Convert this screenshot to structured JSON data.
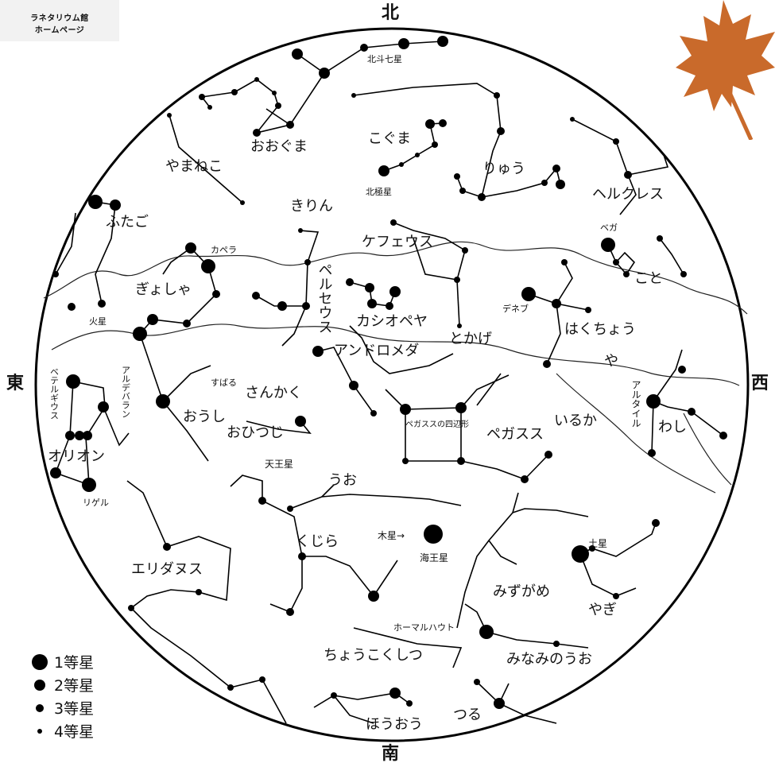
{
  "header": {
    "line1": "ラネタリウム館",
    "line2": "ホームページ"
  },
  "directions": {
    "north": "北",
    "south": "南",
    "east": "東",
    "west": "西"
  },
  "legend": [
    {
      "label": "1等星"
    },
    {
      "label": "2等星"
    },
    {
      "label": "3等星"
    },
    {
      "label": "4等星"
    }
  ],
  "colors": {
    "leaf": "#c96a2b",
    "ink": "#000000",
    "background": "#ffffff"
  },
  "decoration": {
    "icon": "maple-leaf-icon"
  },
  "labels": {
    "hokuto": "北斗七星",
    "ooguma": "おおぐま",
    "koguma": "こぐま",
    "ryuu": "りゅう",
    "hokkyokusei": "北極星",
    "yamaneko": "やまねこ",
    "kirin": "きりん",
    "herukuresu": "ヘルクレス",
    "futago": "ふたご",
    "kapera": "カペラ",
    "perseus": "ペルセウス",
    "kefeusu": "ケフェウス",
    "vega": "ベガ",
    "koto": "こと",
    "gyosha": "ぎょしゃ",
    "kaseihl": "火星",
    "kashiopeya": "カシオペヤ",
    "deneb": "デネブ",
    "hakuchou": "はくちょう",
    "andromeda": "アンドロメダ",
    "tokage": "とかげ",
    "ya": "や",
    "aldebaran": "アルデバラン",
    "subaru": "すばる",
    "sankaku": "さんかく",
    "betelgeuse": "ベテルギウス",
    "ousi": "おうし",
    "pegasus_square": "ペガススの四辺形",
    "pegasusu": "ペガスス",
    "iruka": "いるか",
    "altair": "アルタイル",
    "washi": "わし",
    "ohitsuji": "おひつじ",
    "orion": "オリオン",
    "tennousei": "天王星",
    "uo": "うお",
    "rigel": "リゲル",
    "mokusei": "木星→",
    "kaiousei": "海王星",
    "kujira": "くじら",
    "dosei": "土星",
    "eridanusu": "エリダヌス",
    "mizugame": "みずがめ",
    "yagi": "やぎ",
    "fomalhaut": "ホーマルハウト",
    "chokokushitsu": "ちょうこくしつ",
    "minaminouo": "みなみのうお",
    "tsuru": "つる",
    "houou": "ほうおう"
  }
}
